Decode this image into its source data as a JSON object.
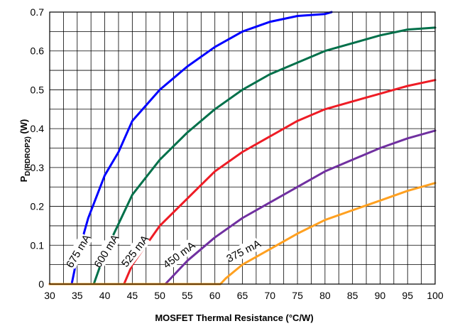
{
  "chart_data": {
    "type": "line",
    "title": "",
    "xlabel": "MOSFET Thermal Resistance (°C/W)",
    "ylabel": {
      "main": "P",
      "subscript": "D(RDROP2)",
      "unit": " (W)"
    },
    "xlim": [
      30,
      100
    ],
    "ylim": [
      0,
      0.7
    ],
    "x_ticks": [
      "30",
      "35",
      "40",
      "45",
      "50",
      "55",
      "60",
      "65",
      "70",
      "75",
      "80",
      "85",
      "90",
      "95",
      "100"
    ],
    "y_ticks": [
      "0",
      "0.1",
      "0.2",
      "0.3",
      "0.4",
      "0.5",
      "0.6",
      "0.7"
    ],
    "grid": true,
    "series": [
      {
        "name": "675 mA",
        "color": "#0000ff",
        "x": [
          30,
          34,
          35,
          37,
          40,
          42.5,
          45,
          50,
          55,
          60,
          65,
          70,
          75,
          80,
          81.2
        ],
        "values": [
          0,
          0,
          0.07,
          0.17,
          0.28,
          0.34,
          0.42,
          0.5,
          0.56,
          0.61,
          0.65,
          0.675,
          0.69,
          0.695,
          0.7
        ]
      },
      {
        "name": "600 mA",
        "color": "#00704a",
        "x": [
          30,
          38,
          40,
          45,
          50,
          55,
          60,
          65,
          70,
          75,
          80,
          85,
          90,
          95,
          100
        ],
        "values": [
          0,
          0,
          0.08,
          0.23,
          0.32,
          0.39,
          0.45,
          0.5,
          0.54,
          0.57,
          0.6,
          0.62,
          0.64,
          0.655,
          0.66
        ]
      },
      {
        "name": "525 mA",
        "color": "#ee1c25",
        "x": [
          30,
          43.5,
          45,
          50,
          55,
          60,
          65,
          70,
          75,
          80,
          85,
          90,
          95,
          100
        ],
        "values": [
          0,
          0,
          0.05,
          0.15,
          0.22,
          0.29,
          0.34,
          0.38,
          0.42,
          0.45,
          0.47,
          0.49,
          0.51,
          0.525
        ]
      },
      {
        "name": "450 mA",
        "color": "#7030a0",
        "x": [
          30,
          51,
          53,
          55,
          60,
          65,
          70,
          75,
          80,
          85,
          90,
          95,
          100
        ],
        "values": [
          0,
          0,
          0.03,
          0.06,
          0.12,
          0.17,
          0.21,
          0.25,
          0.29,
          0.32,
          0.35,
          0.375,
          0.395
        ]
      },
      {
        "name": "375 mA",
        "color": "#ffa020",
        "x": [
          30,
          61,
          62,
          65,
          70,
          75,
          80,
          85,
          90,
          95,
          100
        ],
        "values": [
          0,
          0,
          0.015,
          0.05,
          0.09,
          0.13,
          0.165,
          0.19,
          0.215,
          0.24,
          0.26
        ]
      }
    ]
  }
}
